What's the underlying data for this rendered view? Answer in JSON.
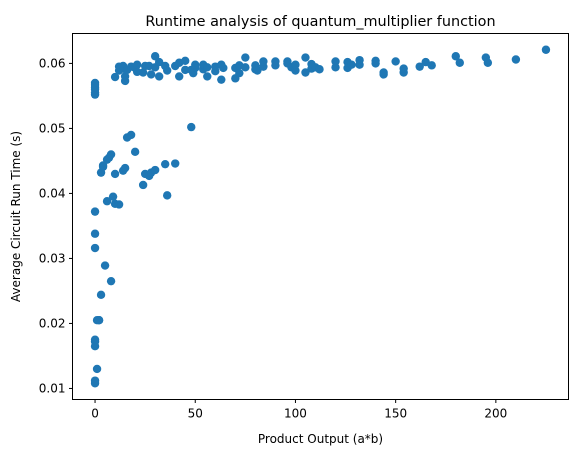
{
  "chart_data": {
    "type": "scatter",
    "title": "Runtime analysis of quantum_multiplier function",
    "xlabel": "Product Output (a*b)",
    "ylabel": "Average Circuit Run Time (s)",
    "xlim": [
      -11.25,
      236.25
    ],
    "ylim": [
      0.0083,
      0.0646
    ],
    "xticks": [
      0,
      50,
      100,
      150,
      200
    ],
    "xtick_labels": [
      "0",
      "50",
      "100",
      "150",
      "200"
    ],
    "yticks": [
      0.01,
      0.02,
      0.03,
      0.04,
      0.05,
      0.06
    ],
    "ytick_labels": [
      "0.01",
      "0.02",
      "0.03",
      "0.04",
      "0.05",
      "0.06"
    ],
    "grid": false,
    "marker_color": "#1f77b4",
    "series": [
      {
        "x": [
          0,
          0,
          0,
          0,
          0,
          0,
          0,
          0,
          0,
          0,
          0,
          0,
          0,
          0,
          1,
          1,
          2,
          2,
          3,
          3,
          4,
          4,
          5,
          6,
          6,
          7,
          8,
          8,
          9,
          10,
          10,
          10,
          12,
          12,
          12,
          14,
          14,
          14,
          15,
          15,
          15,
          16,
          16,
          18,
          18,
          20,
          20,
          21,
          21,
          24,
          24,
          25,
          25,
          27,
          27,
          28,
          28,
          30,
          30,
          30,
          32,
          32,
          35,
          35,
          36,
          36,
          40,
          40,
          42,
          42,
          45,
          45,
          48,
          48,
          49,
          50,
          50,
          54,
          54,
          56,
          56,
          60,
          60,
          63,
          63,
          64,
          70,
          70,
          72,
          72,
          75,
          75,
          80,
          80,
          81,
          84,
          84,
          90,
          90,
          96,
          96,
          98,
          100,
          100,
          105,
          105,
          108,
          108,
          110,
          112,
          120,
          120,
          126,
          126,
          128,
          132,
          132,
          140,
          140,
          144,
          144,
          150,
          154,
          154,
          162,
          165,
          168,
          180,
          182,
          195,
          196,
          210,
          225
        ],
        "y": [
          0.0108,
          0.0112,
          0.0165,
          0.0172,
          0.0175,
          0.0316,
          0.0338,
          0.0372,
          0.0552,
          0.0555,
          0.056,
          0.0563,
          0.0567,
          0.057,
          0.013,
          0.0205,
          0.0205,
          0.0205,
          0.0244,
          0.0432,
          0.0441,
          0.0443,
          0.0289,
          0.0388,
          0.0452,
          0.0455,
          0.0265,
          0.046,
          0.0395,
          0.0384,
          0.043,
          0.0579,
          0.0383,
          0.0589,
          0.0595,
          0.0435,
          0.0592,
          0.0596,
          0.0439,
          0.0573,
          0.058,
          0.0486,
          0.059,
          0.049,
          0.0595,
          0.0464,
          0.0593,
          0.0587,
          0.0598,
          0.0413,
          0.0586,
          0.043,
          0.0596,
          0.0427,
          0.0596,
          0.0432,
          0.0583,
          0.0436,
          0.0611,
          0.0594,
          0.058,
          0.0602,
          0.0445,
          0.0596,
          0.0397,
          0.0589,
          0.0446,
          0.0596,
          0.058,
          0.0601,
          0.059,
          0.0604,
          0.0502,
          0.059,
          0.0585,
          0.0593,
          0.0598,
          0.0591,
          0.0598,
          0.058,
          0.0594,
          0.0588,
          0.0595,
          0.0575,
          0.0598,
          0.0593,
          0.0577,
          0.0593,
          0.0585,
          0.0597,
          0.0609,
          0.0594,
          0.0591,
          0.0597,
          0.0589,
          0.0595,
          0.0603,
          0.0597,
          0.0603,
          0.06,
          0.0603,
          0.0594,
          0.0589,
          0.0598,
          0.0609,
          0.0586,
          0.0592,
          0.0599,
          0.0594,
          0.0591,
          0.0594,
          0.0603,
          0.0593,
          0.0602,
          0.0598,
          0.0605,
          0.0598,
          0.0604,
          0.06,
          0.0583,
          0.0586,
          0.0603,
          0.0586,
          0.0592,
          0.0595,
          0.0602,
          0.0597,
          0.0611,
          0.0601,
          0.0609,
          0.0601,
          0.0606,
          0.0621
        ]
      }
    ]
  }
}
